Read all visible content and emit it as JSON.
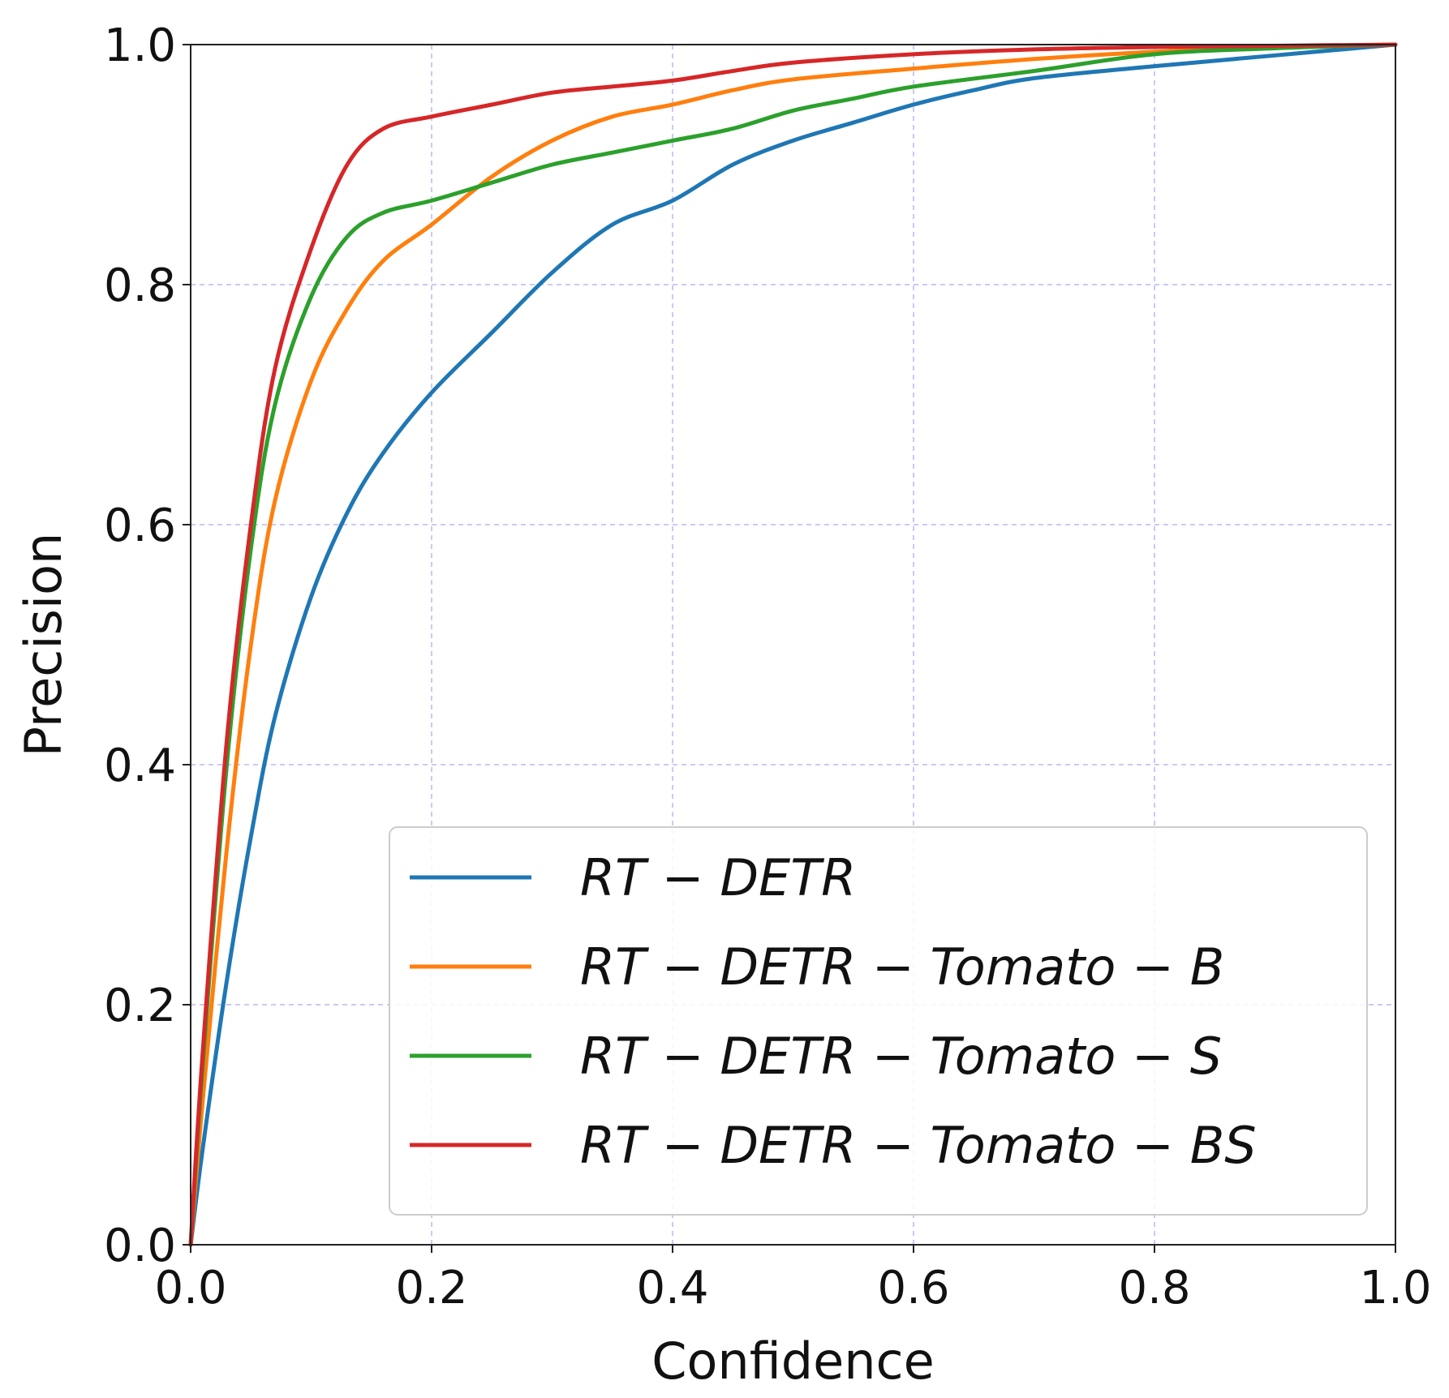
{
  "chart_data": {
    "type": "line",
    "title": "",
    "xlabel": "Confidence",
    "ylabel": "Precision",
    "xlim": [
      0.0,
      1.0
    ],
    "ylim": [
      0.0,
      1.0
    ],
    "xticks": [
      "0.0",
      "0.2",
      "0.4",
      "0.6",
      "0.8",
      "1.0"
    ],
    "yticks": [
      "0.0",
      "0.2",
      "0.4",
      "0.6",
      "0.8",
      "1.0"
    ],
    "grid": true,
    "legend_position": "lower-right",
    "series": [
      {
        "name": "RT − DETR",
        "color": "#1f77b4",
        "points": [
          [
            0,
            0
          ],
          [
            0.01,
            0.08
          ],
          [
            0.03,
            0.22
          ],
          [
            0.05,
            0.34
          ],
          [
            0.07,
            0.44
          ],
          [
            0.1,
            0.54
          ],
          [
            0.13,
            0.61
          ],
          [
            0.16,
            0.66
          ],
          [
            0.2,
            0.71
          ],
          [
            0.25,
            0.76
          ],
          [
            0.3,
            0.81
          ],
          [
            0.35,
            0.85
          ],
          [
            0.4,
            0.87
          ],
          [
            0.45,
            0.9
          ],
          [
            0.5,
            0.92
          ],
          [
            0.55,
            0.935
          ],
          [
            0.6,
            0.95
          ],
          [
            0.65,
            0.962
          ],
          [
            0.7,
            0.972
          ],
          [
            0.8,
            0.982
          ],
          [
            0.9,
            0.991
          ],
          [
            1.0,
            1.0
          ]
        ]
      },
      {
        "name": "RT − DETR − Tomato − B",
        "color": "#ff7f0e",
        "points": [
          [
            0,
            0
          ],
          [
            0.01,
            0.12
          ],
          [
            0.03,
            0.33
          ],
          [
            0.05,
            0.5
          ],
          [
            0.07,
            0.62
          ],
          [
            0.1,
            0.72
          ],
          [
            0.13,
            0.78
          ],
          [
            0.16,
            0.82
          ],
          [
            0.2,
            0.85
          ],
          [
            0.25,
            0.89
          ],
          [
            0.3,
            0.92
          ],
          [
            0.35,
            0.94
          ],
          [
            0.4,
            0.95
          ],
          [
            0.45,
            0.962
          ],
          [
            0.5,
            0.971
          ],
          [
            0.6,
            0.98
          ],
          [
            0.7,
            0.988
          ],
          [
            0.8,
            0.994
          ],
          [
            0.9,
            0.998
          ],
          [
            1.0,
            1.0
          ]
        ]
      },
      {
        "name": "RT − DETR − Tomato − S",
        "color": "#2ca02c",
        "points": [
          [
            0,
            0
          ],
          [
            0.01,
            0.15
          ],
          [
            0.03,
            0.4
          ],
          [
            0.05,
            0.58
          ],
          [
            0.07,
            0.7
          ],
          [
            0.1,
            0.79
          ],
          [
            0.13,
            0.84
          ],
          [
            0.16,
            0.86
          ],
          [
            0.2,
            0.87
          ],
          [
            0.25,
            0.885
          ],
          [
            0.3,
            0.9
          ],
          [
            0.35,
            0.91
          ],
          [
            0.4,
            0.92
          ],
          [
            0.45,
            0.93
          ],
          [
            0.5,
            0.945
          ],
          [
            0.55,
            0.955
          ],
          [
            0.6,
            0.965
          ],
          [
            0.7,
            0.978
          ],
          [
            0.8,
            0.992
          ],
          [
            0.9,
            0.997
          ],
          [
            1.0,
            1.0
          ]
        ]
      },
      {
        "name": "RT − DETR − Tomato − BS",
        "color": "#d62728",
        "points": [
          [
            0,
            0
          ],
          [
            0.01,
            0.16
          ],
          [
            0.03,
            0.42
          ],
          [
            0.05,
            0.6
          ],
          [
            0.07,
            0.73
          ],
          [
            0.1,
            0.83
          ],
          [
            0.13,
            0.9
          ],
          [
            0.16,
            0.93
          ],
          [
            0.2,
            0.94
          ],
          [
            0.25,
            0.95
          ],
          [
            0.3,
            0.96
          ],
          [
            0.35,
            0.965
          ],
          [
            0.4,
            0.97
          ],
          [
            0.45,
            0.978
          ],
          [
            0.5,
            0.985
          ],
          [
            0.6,
            0.992
          ],
          [
            0.7,
            0.996
          ],
          [
            0.8,
            0.998
          ],
          [
            0.9,
            0.999
          ],
          [
            1.0,
            1.0
          ]
        ]
      }
    ]
  }
}
